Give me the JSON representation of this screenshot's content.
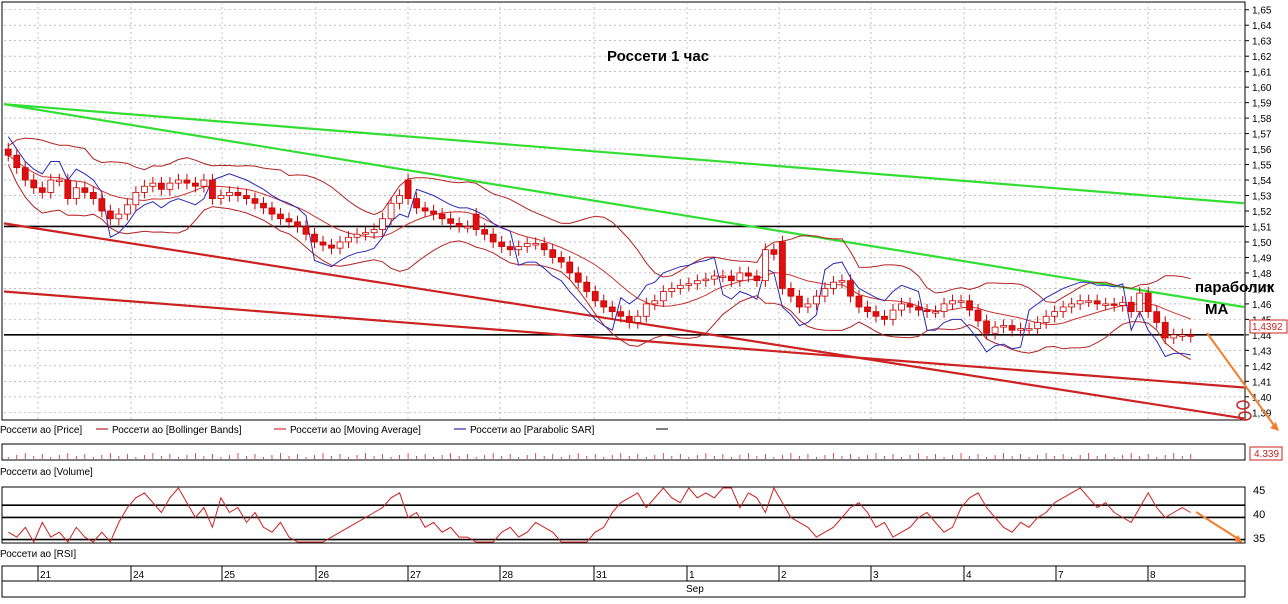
{
  "chart_data": {
    "type": "candlestick",
    "title": "Россети   1 час",
    "price_axis": {
      "ticks": [
        "1,65",
        "1,64",
        "1,63",
        "1,62",
        "1,61",
        "1,60",
        "1,59",
        "1,58",
        "1,57",
        "1,56",
        "1,55",
        "1,54",
        "1,53",
        "1,52",
        "1,51",
        "1,50",
        "1,49",
        "1,48",
        "1,47",
        "1,46",
        "1,45",
        "1,44",
        "1,43",
        "1,42",
        "1,41",
        "1,40",
        "1,39"
      ],
      "range": [
        1.385,
        1.655
      ],
      "last_price_label": "1,4392",
      "last_price": 1.4392
    },
    "legend": [
      {
        "label": "Россети ао [Price]",
        "color": "#000000"
      },
      {
        "label": "Россети ао [Bollinger Bands]",
        "color": "#b22222"
      },
      {
        "label": "Россети ао [Moving Average]",
        "color": "#cc3333"
      },
      {
        "label": "Россети ао [Parabolic SAR]",
        "color": "#2a2ab8"
      }
    ],
    "annotations": [
      {
        "text": "параболик",
        "color": "#000000"
      },
      {
        "text": "МА",
        "color": "#000000"
      }
    ],
    "horizontal_levels": [
      1.51,
      1.44
    ],
    "trend_lines": [
      {
        "color": "#33dd33",
        "from": {
          "bar": 0,
          "price": 1.589
        },
        "to": {
          "bar": 140,
          "price": 1.525
        }
      },
      {
        "color": "#33dd33",
        "from": {
          "bar": 0,
          "price": 1.589
        },
        "to": {
          "bar": 140,
          "price": 1.458
        }
      },
      {
        "color": "#cc2222",
        "from": {
          "bar": 0,
          "price": 1.512
        },
        "to": {
          "bar": 140,
          "price": 1.386
        }
      },
      {
        "color": "#cc2222",
        "from": {
          "bar": 0,
          "price": 1.468
        },
        "to": {
          "bar": 140,
          "price": 1.406
        }
      }
    ],
    "candles_close": [
      1.556,
      1.548,
      1.54,
      1.535,
      1.532,
      1.54,
      1.54,
      1.528,
      1.535,
      1.532,
      1.528,
      1.52,
      1.515,
      1.518,
      1.524,
      1.532,
      1.536,
      1.538,
      1.534,
      1.538,
      1.54,
      1.538,
      1.536,
      1.54,
      1.528,
      1.53,
      1.532,
      1.53,
      1.528,
      1.525,
      1.522,
      1.518,
      1.515,
      1.513,
      1.51,
      1.505,
      1.5,
      1.498,
      1.496,
      1.5,
      1.503,
      1.505,
      1.506,
      1.508,
      1.515,
      1.525,
      1.53,
      1.528,
      1.522,
      1.52,
      1.518,
      1.515,
      1.512,
      1.51,
      1.51,
      1.508,
      1.505,
      1.5,
      1.497,
      1.495,
      1.497,
      1.499,
      1.499,
      1.495,
      1.49,
      1.487,
      1.48,
      1.474,
      1.468,
      1.462,
      1.458,
      1.455,
      1.452,
      1.448,
      1.452,
      1.46,
      1.462,
      1.468,
      1.47,
      1.472,
      1.473,
      1.475,
      1.476,
      1.478,
      1.478,
      1.475,
      1.48,
      1.478,
      1.475,
      1.495,
      1.492,
      1.47,
      1.465,
      1.458,
      1.46,
      1.465,
      1.47,
      1.474,
      1.475,
      1.465,
      1.458,
      1.455,
      1.452,
      1.45,
      1.456,
      1.46,
      1.458,
      1.456,
      1.455,
      1.455,
      1.46,
      1.462,
      1.462,
      1.456,
      1.449,
      1.441,
      1.445,
      1.446,
      1.443,
      1.444,
      1.444,
      1.448,
      1.452,
      1.455,
      1.458,
      1.46,
      1.462,
      1.462,
      1.46,
      1.46,
      1.459,
      1.461,
      1.455,
      1.467,
      1.455,
      1.448,
      1.438,
      1.44,
      1.44,
      1.439
    ],
    "candles_open": [
      1.56,
      1.556,
      1.548,
      1.54,
      1.535,
      1.532,
      1.54,
      1.54,
      1.528,
      1.535,
      1.532,
      1.528,
      1.52,
      1.515,
      1.518,
      1.524,
      1.532,
      1.536,
      1.538,
      1.534,
      1.538,
      1.54,
      1.538,
      1.536,
      1.54,
      1.528,
      1.53,
      1.532,
      1.53,
      1.528,
      1.525,
      1.522,
      1.518,
      1.515,
      1.513,
      1.51,
      1.505,
      1.5,
      1.498,
      1.496,
      1.5,
      1.503,
      1.505,
      1.506,
      1.508,
      1.515,
      1.525,
      1.54,
      1.528,
      1.522,
      1.52,
      1.518,
      1.515,
      1.512,
      1.51,
      1.518,
      1.508,
      1.505,
      1.5,
      1.497,
      1.495,
      1.497,
      1.499,
      1.499,
      1.495,
      1.49,
      1.487,
      1.48,
      1.474,
      1.468,
      1.462,
      1.458,
      1.455,
      1.452,
      1.448,
      1.452,
      1.46,
      1.462,
      1.468,
      1.47,
      1.472,
      1.473,
      1.475,
      1.476,
      1.478,
      1.478,
      1.475,
      1.48,
      1.478,
      1.475,
      1.495,
      1.5,
      1.47,
      1.465,
      1.458,
      1.46,
      1.465,
      1.47,
      1.474,
      1.475,
      1.465,
      1.458,
      1.455,
      1.452,
      1.45,
      1.456,
      1.46,
      1.458,
      1.456,
      1.455,
      1.455,
      1.46,
      1.462,
      1.462,
      1.456,
      1.449,
      1.441,
      1.445,
      1.446,
      1.443,
      1.444,
      1.444,
      1.448,
      1.452,
      1.455,
      1.458,
      1.46,
      1.462,
      1.462,
      1.46,
      1.46,
      1.459,
      1.461,
      1.455,
      1.467,
      1.455,
      1.448,
      1.438,
      1.44,
      1.44
    ],
    "volume_label": "Россети ао [Volume]",
    "volume_value_label": "4.339",
    "rsi": {
      "label": "Россети ао [RSI]",
      "ticks": [
        "45",
        "40",
        "35"
      ],
      "range": [
        35,
        46
      ],
      "levels": [
        42.5,
        40,
        35.5
      ],
      "values": [
        37,
        36,
        38,
        35,
        39,
        36,
        37,
        35,
        38,
        36,
        34,
        37,
        35,
        39,
        42,
        44,
        45,
        43,
        41,
        44,
        46,
        43,
        40,
        42,
        38,
        44,
        41,
        42,
        39,
        41,
        38,
        37,
        39,
        36,
        34,
        35,
        33,
        34,
        36,
        37,
        38,
        39,
        40,
        41,
        42,
        44,
        45,
        40,
        41,
        38,
        39,
        37,
        38,
        36,
        36,
        35,
        33,
        34,
        37,
        38,
        36,
        37,
        39,
        38,
        37,
        35,
        34,
        33,
        35,
        37,
        38,
        41,
        43,
        44,
        45,
        42,
        44,
        46,
        44,
        43,
        46,
        44,
        45,
        44,
        46,
        47,
        42,
        45,
        44,
        41,
        46,
        43,
        40,
        39,
        38,
        36,
        37,
        38,
        40,
        42,
        43,
        41,
        38,
        39,
        36,
        37,
        38,
        40,
        41,
        39,
        37,
        38,
        42,
        44,
        45,
        42,
        40,
        38,
        37,
        39,
        38,
        40,
        41,
        43,
        44,
        45,
        46,
        44,
        42,
        43,
        41,
        40,
        39,
        42,
        45,
        42,
        40,
        41,
        42,
        41
      ]
    },
    "x_axis": {
      "labels": [
        "21",
        "24",
        "25",
        "26",
        "27",
        "28",
        "31",
        "1",
        "2",
        "3",
        "4",
        "7",
        "8"
      ],
      "month_label": "Sep"
    }
  }
}
